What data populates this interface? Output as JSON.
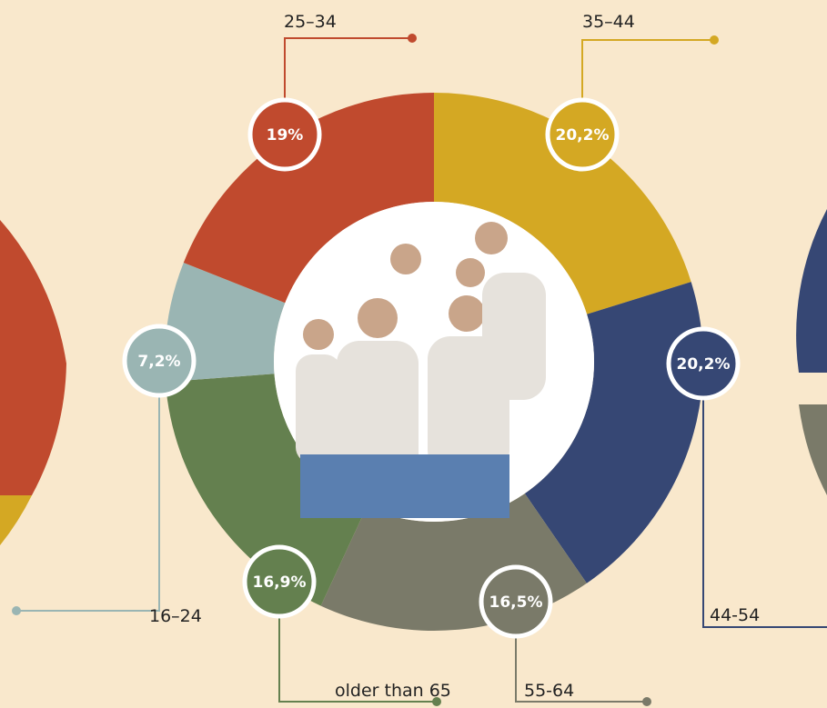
{
  "chart_data": {
    "type": "pie",
    "categories": [
      "35–44",
      "44-54",
      "55-64",
      "older than 65",
      "16–24",
      "25–34"
    ],
    "values": [
      20.2,
      20.2,
      16.5,
      16.9,
      7.2,
      19
    ],
    "value_labels": [
      "20,2%",
      "20,2%",
      "16,5%",
      "16,9%",
      "7,2%",
      "19%"
    ],
    "colors": [
      "#d4a823",
      "#364774",
      "#7a7a69",
      "#64804f",
      "#9ab5b3",
      "#c04a2e"
    ]
  }
}
